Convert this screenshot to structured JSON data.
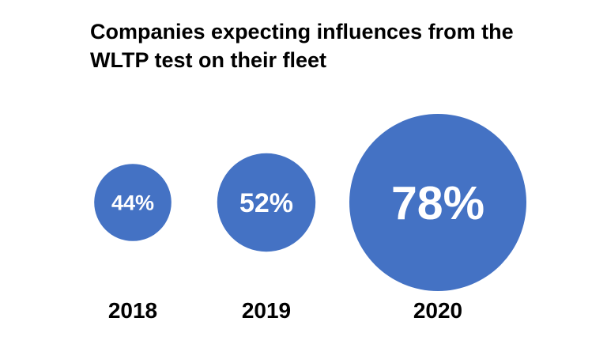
{
  "chart_data": {
    "type": "bubble",
    "title": "Companies expecting influences from the WLTP test on their fleet",
    "categories": [
      "2018",
      "2019",
      "2020"
    ],
    "values": [
      44,
      52,
      78
    ],
    "value_labels": [
      "44%",
      "52%",
      "78%"
    ],
    "xlabel": "",
    "ylabel": "",
    "grid": false,
    "legend": "none",
    "bubble_color": "#4472C4",
    "label_color": "#ffffff",
    "category_label_color": "#000000"
  }
}
